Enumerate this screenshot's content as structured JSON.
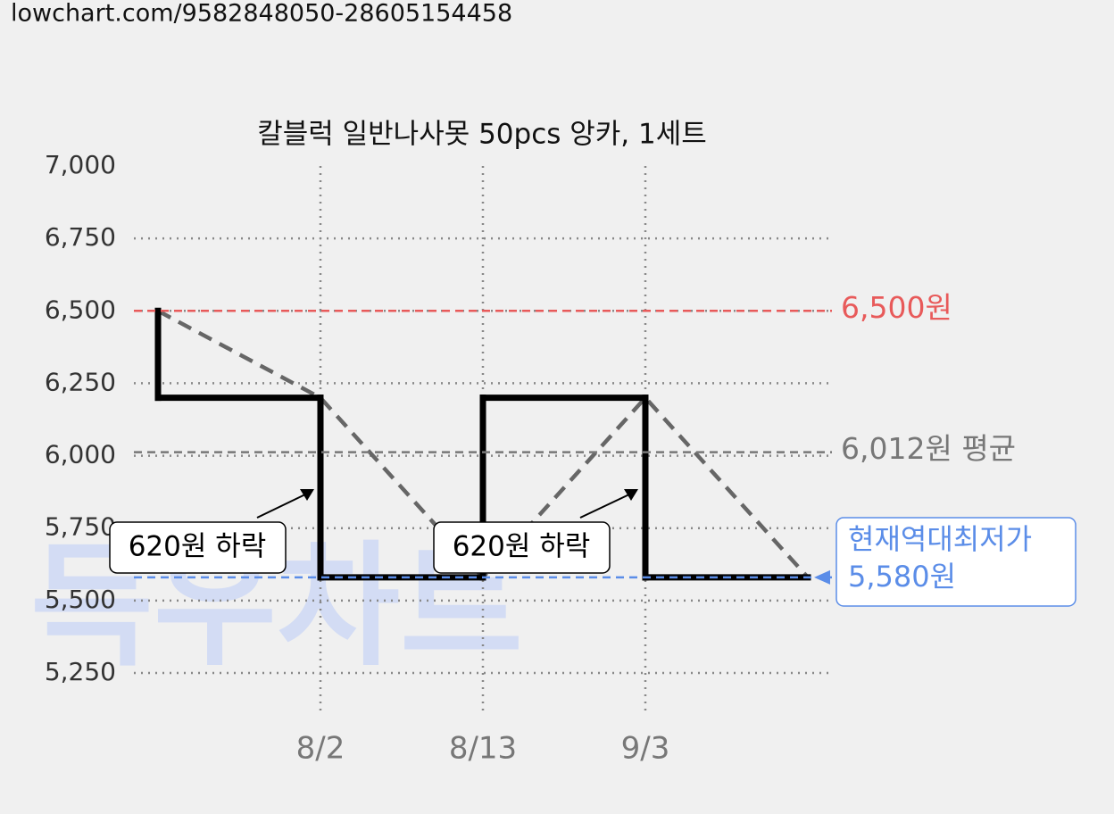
{
  "page_url": "lowchart.com/9582848050-28605154458",
  "chart_data": {
    "type": "step-line",
    "title": "칼블럭 일반나사못 50pcs 앙카, 1세트",
    "watermark": "득우차트",
    "categories": [
      null,
      "8/2",
      "8/13",
      "9/3",
      null
    ],
    "series": [
      {
        "color": "#000000",
        "trend_color": "#666666",
        "values": [
          6500,
          6200,
          5580,
          6200,
          5580
        ]
      }
    ],
    "ylim": [
      5250,
      7000
    ],
    "yticks": [
      {
        "value": 7000,
        "label": "7,000"
      },
      {
        "value": 6750,
        "label": "6,750"
      },
      {
        "value": 6500,
        "label": "6,500"
      },
      {
        "value": 6250,
        "label": "6,250"
      },
      {
        "value": 6000,
        "label": "6,000"
      },
      {
        "value": 5750,
        "label": "5,750"
      },
      {
        "value": 5500,
        "label": "5,500"
      },
      {
        "value": 5250,
        "label": "5,250"
      }
    ],
    "grid": true,
    "reference_lines": [
      {
        "value": 6500,
        "label": "6,500원",
        "color": "#e85a5a"
      },
      {
        "value": 6012,
        "label": "6,012원 평균",
        "color": "#777777"
      },
      {
        "value": 5580,
        "label": "5,580원",
        "note": "현재역대최저가",
        "color": "#5b8de8"
      }
    ],
    "annotations": [
      "620원 하락",
      "620원 하락"
    ]
  }
}
